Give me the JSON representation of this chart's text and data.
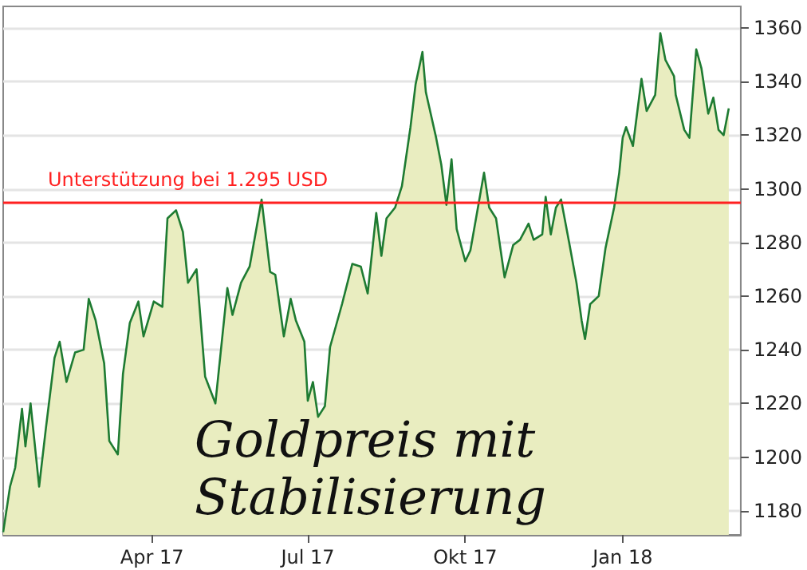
{
  "chart_data": {
    "type": "area",
    "x": [
      "2017-01-04",
      "2017-01-08",
      "2017-01-11",
      "2017-01-15",
      "2017-01-17",
      "2017-01-20",
      "2017-01-25",
      "2017-01-29",
      "2017-02-03",
      "2017-02-06",
      "2017-02-10",
      "2017-02-15",
      "2017-02-20",
      "2017-02-23",
      "2017-02-27",
      "2017-03-04",
      "2017-03-07",
      "2017-03-12",
      "2017-03-15",
      "2017-03-19",
      "2017-03-24",
      "2017-03-27",
      "2017-04-02",
      "2017-04-07",
      "2017-04-10",
      "2017-04-15",
      "2017-04-19",
      "2017-04-22",
      "2017-04-27",
      "2017-05-02",
      "2017-05-08",
      "2017-05-15",
      "2017-05-18",
      "2017-05-23",
      "2017-05-28",
      "2017-06-04",
      "2017-06-09",
      "2017-06-12",
      "2017-06-17",
      "2017-06-21",
      "2017-06-24",
      "2017-06-29",
      "2017-07-01",
      "2017-07-04",
      "2017-07-07",
      "2017-07-11",
      "2017-07-14",
      "2017-07-21",
      "2017-07-27",
      "2017-08-01",
      "2017-08-05",
      "2017-08-10",
      "2017-08-13",
      "2017-08-16",
      "2017-08-21",
      "2017-08-25",
      "2017-08-30",
      "2017-09-02",
      "2017-09-06",
      "2017-09-08",
      "2017-09-14",
      "2017-09-17",
      "2017-09-20",
      "2017-09-23",
      "2017-09-26",
      "2017-10-01",
      "2017-10-04",
      "2017-10-12",
      "2017-10-15",
      "2017-10-19",
      "2017-10-24",
      "2017-10-29",
      "2017-11-02",
      "2017-11-07",
      "2017-11-10",
      "2017-11-15",
      "2017-11-17",
      "2017-11-20",
      "2017-11-23",
      "2017-11-26",
      "2017-12-01",
      "2017-12-05",
      "2017-12-08",
      "2017-12-10",
      "2017-12-13",
      "2017-12-18",
      "2017-12-22",
      "2017-12-27",
      "2017-12-30",
      "2018-01-01",
      "2018-01-03",
      "2018-01-07",
      "2018-01-12",
      "2018-01-15",
      "2018-01-20",
      "2018-01-23",
      "2018-01-26",
      "2018-01-31",
      "2018-02-01",
      "2018-02-06",
      "2018-02-09",
      "2018-02-13",
      "2018-02-16",
      "2018-02-20",
      "2018-02-23",
      "2018-02-26",
      "2018-03-01",
      "2018-03-04"
    ],
    "series": [
      {
        "color": "#1e7b32",
        "values": [
          1172,
          1189,
          1196,
          1218,
          1204,
          1220,
          1189,
          1211,
          1237,
          1243,
          1228,
          1239,
          1240,
          1259,
          1251,
          1235,
          1206,
          1201,
          1231,
          1250,
          1258,
          1245,
          1258,
          1256,
          1289,
          1292,
          1284,
          1265,
          1270,
          1230,
          1220,
          1263,
          1253,
          1265,
          1271,
          1296,
          1269,
          1268,
          1245,
          1259,
          1251,
          1243,
          1221,
          1228,
          1215,
          1219,
          1241,
          1257,
          1272,
          1271,
          1261,
          1291,
          1275,
          1289,
          1293,
          1301,
          1323,
          1339,
          1351,
          1336,
          1319,
          1309,
          1294,
          1311,
          1285,
          1273,
          1277,
          1306,
          1293,
          1289,
          1267,
          1279,
          1281,
          1287,
          1281,
          1283,
          1297,
          1283,
          1293,
          1296,
          1279,
          1265,
          1251,
          1244,
          1257,
          1260,
          1278,
          1293,
          1306,
          1319,
          1323,
          1316,
          1341,
          1329,
          1335,
          1358,
          1348,
          1342,
          1335,
          1322,
          1319,
          1352,
          1345,
          1328,
          1334,
          1322,
          1320,
          1330
        ]
      }
    ],
    "xlim": [
      "2017-01-04",
      "2018-03-11"
    ],
    "xticks": [
      {
        "value": "2017-04-01",
        "label": "Apr 17"
      },
      {
        "value": "2017-07-01",
        "label": "Jul 17"
      },
      {
        "value": "2017-10-01",
        "label": "Okt 17"
      },
      {
        "value": "2018-01-01",
        "label": "Jan 18"
      }
    ],
    "ylim": [
      1171,
      1368
    ],
    "yticks": [
      1180,
      1200,
      1220,
      1240,
      1260,
      1280,
      1300,
      1320,
      1340,
      1360
    ],
    "grid": "y",
    "ref_lines": [
      {
        "axis": "y",
        "value": 1295,
        "label": "Unterstützung bei 1.295 USD",
        "color": "#ff2020"
      }
    ],
    "annotations": [
      "Goldpreis mit Stabilisierung"
    ]
  }
}
